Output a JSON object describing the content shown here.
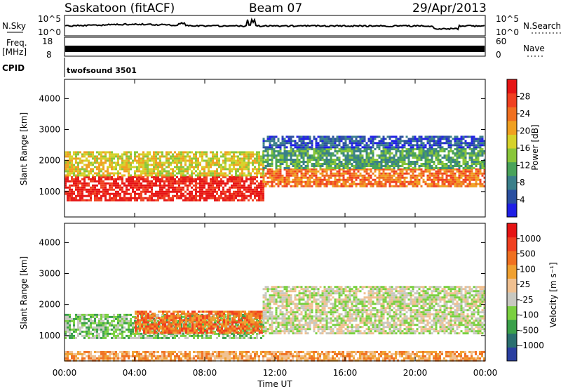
{
  "header": {
    "station": "Saskatoon (fitACF)",
    "beam": "Beam 07",
    "date": "29/Apr/2013"
  },
  "strips": {
    "noise": {
      "left_label": "N.Sky",
      "right_label": "N.Search",
      "left_ticks": [
        "10^5",
        "10^0"
      ],
      "right_ticks": [
        "10^5",
        "10^0"
      ]
    },
    "freq": {
      "left_label": "Freq.",
      "left_unit": "[MHz]",
      "right_label": "Nave",
      "left_ticks": [
        "18",
        "8"
      ],
      "right_ticks": [
        "60",
        "0"
      ]
    },
    "cpid": {
      "left_label": "CPID",
      "value": "twofsound 3501"
    }
  },
  "xaxis": {
    "label": "Time UT",
    "ticks": [
      "00:00",
      "04:00",
      "08:00",
      "12:00",
      "16:00",
      "20:00",
      "00:00"
    ]
  },
  "chart_data": [
    {
      "type": "heatmap",
      "name": "power",
      "ylabel": "Slant Range [km]",
      "yticks": [
        "1000",
        "2000",
        "3000",
        "4000"
      ],
      "ylim": [
        180,
        4620
      ],
      "xlim": [
        0,
        24
      ],
      "colorbar": {
        "label": "Power [dB]",
        "ticks": [
          "4",
          "8",
          "12",
          "16",
          "20",
          "24",
          "28"
        ],
        "colors": [
          "#1f1fe6",
          "#2a4fa0",
          "#3a7f8a",
          "#49a35a",
          "#89c63a",
          "#d6d22a",
          "#f0a020",
          "#f07020",
          "#f04020",
          "#e61414"
        ]
      },
      "bands": [
        {
          "t0": 0.0,
          "t1": 11.3,
          "r0": 700,
          "r1": 1500,
          "level": 9
        },
        {
          "t0": 0.0,
          "t1": 11.3,
          "r0": 1500,
          "r1": 2300,
          "level": 5
        },
        {
          "t0": 11.3,
          "t1": 24.0,
          "r0": 1200,
          "r1": 1750,
          "level": 7
        },
        {
          "t0": 11.3,
          "t1": 24.0,
          "r0": 1750,
          "r1": 2400,
          "level": 3
        },
        {
          "t0": 11.3,
          "t1": 24.0,
          "r0": 2400,
          "r1": 2800,
          "level": 1
        }
      ]
    },
    {
      "type": "heatmap",
      "name": "velocity",
      "ylabel": "Slant Range [km]",
      "yticks": [
        "1000",
        "2000",
        "3000",
        "4000"
      ],
      "ylim": [
        180,
        4620
      ],
      "xlim": [
        0,
        24
      ],
      "colorbar": {
        "label": "Velocity [m s⁻¹]",
        "ticks": [
          "1000",
          "500",
          "100",
          "25",
          "-25",
          "-100",
          "-500",
          "-1000"
        ],
        "colors": [
          "#2a3fa0",
          "#2a6f6f",
          "#3aa04a",
          "#7ad040",
          "#c8c8c0",
          "#f0c090",
          "#f0a030",
          "#f07020",
          "#f04020",
          "#e61414"
        ]
      },
      "bands": [
        {
          "t0": 0.0,
          "t1": 11.3,
          "r0": 900,
          "r1": 1700,
          "level": 3
        },
        {
          "t0": 4.0,
          "t1": 11.3,
          "r0": 1100,
          "r1": 1800,
          "level": 7
        },
        {
          "t0": 11.3,
          "t1": 24.0,
          "r0": 1100,
          "r1": 2600,
          "level": 4
        },
        {
          "t0": 0.0,
          "t1": 24.0,
          "r0": 200,
          "r1": 500,
          "level": 6
        }
      ]
    }
  ]
}
